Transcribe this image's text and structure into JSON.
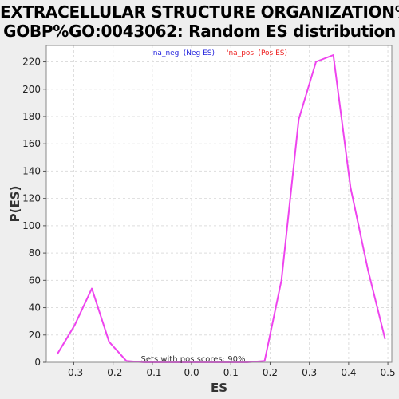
{
  "chart_data": {
    "type": "line",
    "title_line1": "EXTRACELLULAR STRUCTURE ORGANIZATION%",
    "title_line2": "GOBP%GO:0043062: Random ES distribution",
    "xlabel": "ES",
    "ylabel": "P(ES)",
    "xlim": [
      -0.37,
      0.51
    ],
    "ylim": [
      0,
      232
    ],
    "x_ticks": [
      -0.3,
      -0.2,
      -0.1,
      0.0,
      0.1,
      0.2,
      0.3,
      0.4,
      0.5
    ],
    "x_tick_labels": [
      "-0.3",
      "-0.2",
      "-0.1",
      "0.0",
      "0.1",
      "0.2",
      "0.3",
      "0.4",
      "0.5"
    ],
    "y_ticks": [
      0,
      20,
      40,
      60,
      80,
      100,
      120,
      140,
      160,
      180,
      200,
      220
    ],
    "y_tick_labels": [
      "0",
      "20",
      "40",
      "60",
      "80",
      "100",
      "120",
      "140",
      "160",
      "180",
      "200",
      "220"
    ],
    "grid": true,
    "legend_position": "top-center",
    "legend": [
      {
        "label": "'na_neg' (Neg ES)",
        "color": "#2222dd"
      },
      {
        "label": "'na_pos' (Pos ES)",
        "color": "#ee2222"
      }
    ],
    "annotation": "Sets with pos scores: 90%",
    "series": [
      {
        "color": "#ee44ee",
        "x": [
          -0.342,
          -0.298,
          -0.254,
          -0.21,
          -0.166,
          -0.122,
          -0.078,
          -0.034,
          0.01,
          0.054,
          0.098,
          0.142,
          0.186,
          0.229,
          0.273,
          0.317,
          0.361,
          0.405,
          0.449,
          0.493
        ],
        "y": [
          6,
          27,
          54,
          15,
          1,
          0,
          0,
          0,
          0,
          0,
          0,
          0,
          1,
          60,
          178,
          220,
          225,
          128,
          68,
          17
        ]
      }
    ]
  }
}
